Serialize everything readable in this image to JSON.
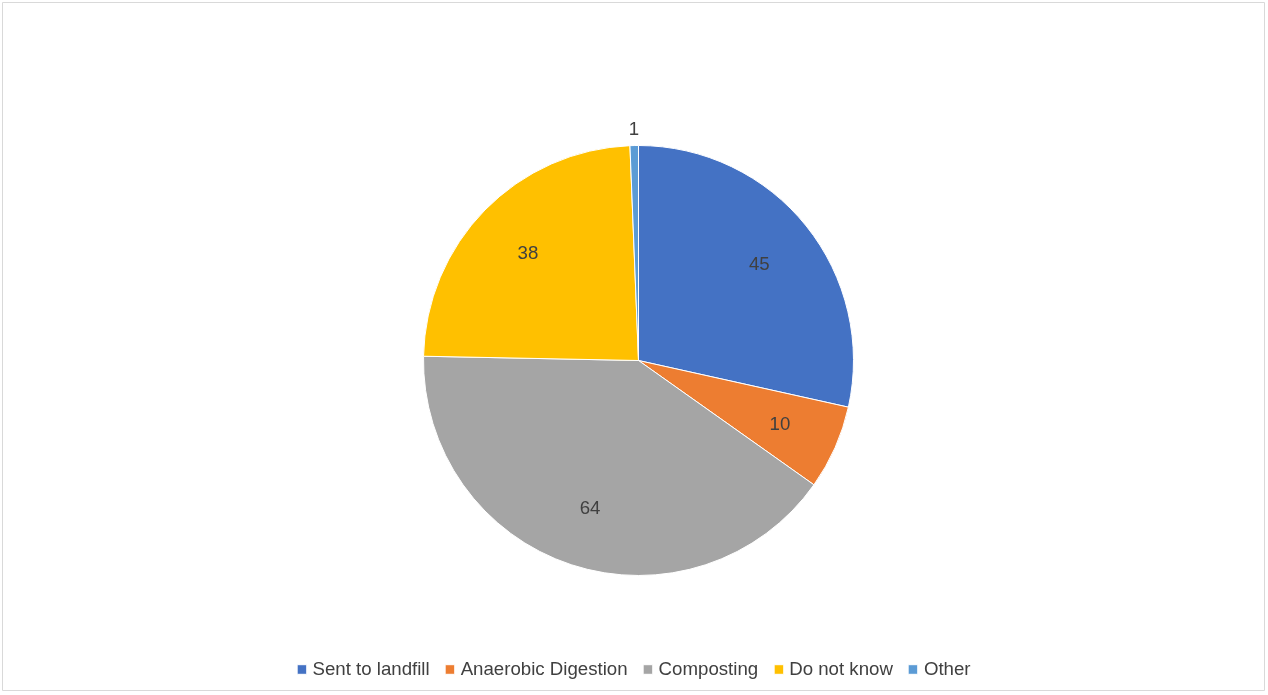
{
  "chart_data": {
    "type": "pie",
    "categories": [
      "Sent to landfill",
      "Anaerobic Digestion",
      "Composting",
      "Do not know",
      "Other"
    ],
    "values": [
      45,
      10,
      64,
      38,
      1
    ],
    "colors": [
      "#4472c4",
      "#ed7d31",
      "#a5a5a5",
      "#ffc000",
      "#5b9bd5"
    ],
    "data_labels": true,
    "legend": "bottom"
  }
}
